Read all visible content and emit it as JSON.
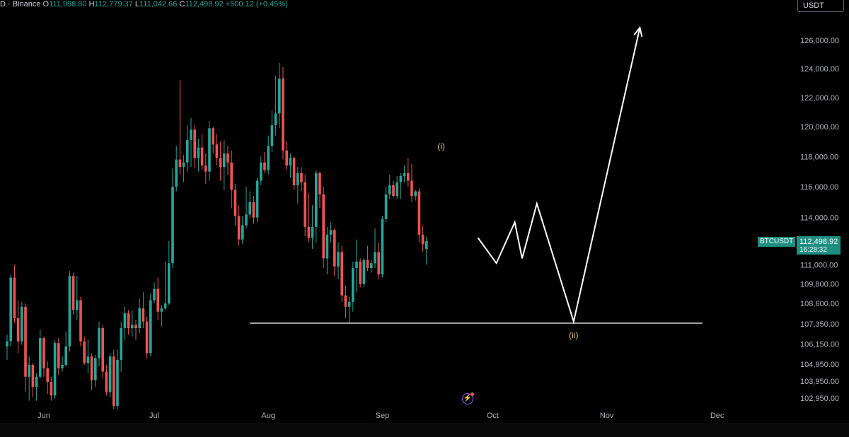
{
  "header": {
    "symbol_suffix": "D · Binance",
    "open_label": "O",
    "open": "111,998.80",
    "high_label": "H",
    "high": "112,779.37",
    "low_label": "L",
    "low": "111,042.66",
    "close_label": "C",
    "close": "112,498.92",
    "change": "+500.12 (+0.45%)"
  },
  "currency_button": "USDT",
  "price_marker": {
    "symbol": "BTCUSDT",
    "price": "112,498.92",
    "countdown": "16:28:32"
  },
  "colors": {
    "up": "#26a69a",
    "down": "#ef5350",
    "background": "#000000",
    "projection": "#ffffff",
    "wave_label": "#e6c86e",
    "axis_text": "#b2b5be"
  },
  "chart_data": {
    "type": "candlestick",
    "symbol": "BTCUSDT",
    "interval": "1D",
    "scale": "log",
    "ylim": [
      102300,
      127500
    ],
    "y_ticks": [
      126000,
      124000,
      122000,
      120000,
      118000,
      116000,
      114000,
      111000,
      109800,
      108600,
      107350,
      106150,
      104950,
      103950,
      102950
    ],
    "y_tick_labels": [
      "126,000.00",
      "124,000.00",
      "122,000.00",
      "120,000.00",
      "118,000.00",
      "116,000.00",
      "114,000.00",
      "111,000.00",
      "109,800.00",
      "108,600.00",
      "107,350.00",
      "106,150.00",
      "104,950.00",
      "103,950.00",
      "102,950.00"
    ],
    "x_labels": [
      {
        "date": "2025-06-01",
        "text": "Jun"
      },
      {
        "date": "2025-07-01",
        "text": "Jul"
      },
      {
        "date": "2025-08-01",
        "text": "Aug"
      },
      {
        "date": "2025-09-01",
        "text": "Sep"
      },
      {
        "date": "2025-10-01",
        "text": "Oct"
      },
      {
        "date": "2025-11-01",
        "text": "Nov"
      },
      {
        "date": "2025-12-01",
        "text": "Dec"
      }
    ],
    "first_candle_date": "2025-05-22",
    "candles": [
      [
        106000,
        106700,
        105200,
        106300
      ],
      [
        106300,
        110400,
        106000,
        110200
      ],
      [
        110200,
        111000,
        107400,
        107700
      ],
      [
        107700,
        108800,
        105600,
        106300
      ],
      [
        106300,
        108700,
        106100,
        108400
      ],
      [
        108400,
        108600,
        103300,
        104200
      ],
      [
        104200,
        105400,
        102800,
        104900
      ],
      [
        104900,
        105000,
        103000,
        103600
      ],
      [
        103600,
        104400,
        102800,
        104200
      ],
      [
        104200,
        107000,
        104100,
        106500
      ],
      [
        106500,
        106600,
        104200,
        104700
      ],
      [
        104700,
        105100,
        103200,
        103900
      ],
      [
        103900,
        104200,
        102800,
        103100
      ],
      [
        103100,
        106400,
        102900,
        106200
      ],
      [
        106200,
        106500,
        104300,
        104700
      ],
      [
        104700,
        105400,
        104500,
        104900
      ],
      [
        104900,
        106900,
        104800,
        106000
      ],
      [
        106000,
        110600,
        105700,
        110300
      ],
      [
        110300,
        110500,
        107900,
        108200
      ],
      [
        108200,
        110300,
        107600,
        108800
      ],
      [
        108800,
        109000,
        106000,
        106300
      ],
      [
        106300,
        106600,
        104900,
        105000
      ],
      [
        105000,
        106400,
        104400,
        105400
      ],
      [
        105400,
        105600,
        103400,
        104000
      ],
      [
        104000,
        105500,
        103600,
        105300
      ],
      [
        105300,
        107500,
        104800,
        107100
      ],
      [
        107100,
        107300,
        104100,
        104500
      ],
      [
        104500,
        104900,
        103100,
        103300
      ],
      [
        103300,
        105600,
        103000,
        105400
      ],
      [
        105400,
        105800,
        102300,
        102500
      ],
      [
        102500,
        105800,
        102300,
        105200
      ],
      [
        105200,
        107500,
        104500,
        107100
      ],
      [
        107100,
        108400,
        106400,
        108000
      ],
      [
        108000,
        108200,
        106700,
        107100
      ],
      [
        107100,
        108200,
        106600,
        107300
      ],
      [
        107300,
        107600,
        106400,
        107100
      ],
      [
        107100,
        108900,
        106800,
        108300
      ],
      [
        108300,
        109300,
        107100,
        107500
      ],
      [
        107500,
        107800,
        105300,
        105600
      ],
      [
        105600,
        109200,
        105400,
        108800
      ],
      [
        108800,
        109900,
        108600,
        109500
      ],
      [
        109500,
        110200,
        107600,
        108100
      ],
      [
        108100,
        108500,
        107200,
        108300
      ],
      [
        108300,
        111200,
        108200,
        108600
      ],
      [
        108600,
        112500,
        108500,
        111100
      ],
      [
        111100,
        117200,
        110800,
        116000
      ],
      [
        116000,
        118700,
        115700,
        117800
      ],
      [
        117800,
        123200,
        116800,
        117300
      ],
      [
        117300,
        118100,
        116300,
        117600
      ],
      [
        117600,
        120100,
        117000,
        119100
      ],
      [
        119100,
        120600,
        117300,
        119800
      ],
      [
        119800,
        120100,
        117200,
        117900
      ],
      [
        117900,
        119200,
        117000,
        118600
      ],
      [
        118600,
        119500,
        117100,
        117400
      ],
      [
        117400,
        118200,
        116200,
        117000
      ],
      [
        117000,
        120400,
        116400,
        119900
      ],
      [
        119900,
        120000,
        118200,
        118800
      ],
      [
        118800,
        119500,
        117400,
        117900
      ],
      [
        117900,
        119000,
        116400,
        117300
      ],
      [
        117300,
        119100,
        115800,
        118200
      ],
      [
        118200,
        118700,
        116800,
        117600
      ],
      [
        117600,
        118400,
        114600,
        115800
      ],
      [
        115800,
        116200,
        113500,
        114100
      ],
      [
        114100,
        114800,
        112200,
        112600
      ],
      [
        112600,
        114100,
        112300,
        113500
      ],
      [
        113500,
        116000,
        113300,
        114200
      ],
      [
        114200,
        115700,
        114000,
        115000
      ],
      [
        115000,
        115400,
        113600,
        114000
      ],
      [
        114000,
        116600,
        113700,
        116400
      ],
      [
        116400,
        118000,
        116100,
        117600
      ],
      [
        117600,
        118300,
        116900,
        117100
      ],
      [
        117100,
        119400,
        116800,
        118700
      ],
      [
        118700,
        121100,
        118300,
        120100
      ],
      [
        120100,
        123500,
        119400,
        120900
      ],
      [
        120900,
        124400,
        119900,
        123300
      ],
      [
        123300,
        124100,
        117800,
        118400
      ],
      [
        118400,
        119000,
        117100,
        117400
      ],
      [
        117400,
        118200,
        116600,
        117900
      ],
      [
        117900,
        118000,
        115800,
        116100
      ],
      [
        116100,
        117300,
        114900,
        116900
      ],
      [
        116900,
        117300,
        115700,
        116300
      ],
      [
        116300,
        116800,
        112800,
        113400
      ],
      [
        113400,
        115600,
        112400,
        112700
      ],
      [
        112700,
        114800,
        112000,
        113400
      ],
      [
        113400,
        117100,
        112400,
        116900
      ],
      [
        116900,
        117000,
        114600,
        115500
      ],
      [
        115500,
        116000,
        110800,
        111400
      ],
      [
        111400,
        113400,
        110400,
        112900
      ],
      [
        112900,
        113700,
        112400,
        113200
      ],
      [
        113200,
        113300,
        110300,
        110900
      ],
      [
        110900,
        112400,
        110100,
        111800
      ],
      [
        111800,
        112200,
        108700,
        109100
      ],
      [
        109100,
        109700,
        107700,
        108400
      ],
      [
        108400,
        109000,
        107400,
        108700
      ],
      [
        108700,
        111200,
        108100,
        110800
      ],
      [
        110800,
        112600,
        109300,
        111200
      ],
      [
        111200,
        111400,
        109600,
        109800
      ],
      [
        109800,
        111400,
        109600,
        111300
      ],
      [
        111300,
        112200,
        110600,
        110800
      ],
      [
        110800,
        111300,
        110500,
        111100
      ],
      [
        111100,
        113300,
        110800,
        111800
      ],
      [
        111800,
        112400,
        110100,
        110400
      ],
      [
        110400,
        114100,
        110200,
        113900
      ],
      [
        113900,
        116000,
        113700,
        115500
      ],
      [
        115500,
        116800,
        115200,
        116100
      ],
      [
        116100,
        116400,
        115300,
        115400
      ],
      [
        115400,
        116700,
        115200,
        116300
      ],
      [
        116300,
        116900,
        115200,
        116700
      ],
      [
        116700,
        117400,
        116300,
        116900
      ],
      [
        116900,
        117900,
        116000,
        116400
      ],
      [
        116400,
        117500,
        115000,
        115400
      ],
      [
        115400,
        115800,
        115100,
        115700
      ],
      [
        115700,
        115900,
        112400,
        112900
      ],
      [
        112900,
        113500,
        111800,
        112300
      ],
      [
        112000,
        112800,
        111000,
        112500
      ]
    ],
    "projection_path": [
      {
        "date": "2025-09-27",
        "price": 112700
      },
      {
        "date": "2025-10-02",
        "price": 111100
      },
      {
        "date": "2025-10-07",
        "price": 113700
      },
      {
        "date": "2025-10-09",
        "price": 111400
      },
      {
        "date": "2025-10-13",
        "price": 114900
      },
      {
        "date": "2025-10-23",
        "price": 107500
      },
      {
        "date": "2025-11-10",
        "price": 126900
      }
    ],
    "support_level": {
      "price": 107400,
      "from_date": "2025-07-27",
      "to_date": "2025-11-27"
    },
    "annotations": [
      {
        "text": "(i)",
        "date": "2025-09-17",
        "price": 118300
      },
      {
        "text": "(ii)",
        "date": "2025-10-23",
        "price": 107100
      }
    ]
  }
}
